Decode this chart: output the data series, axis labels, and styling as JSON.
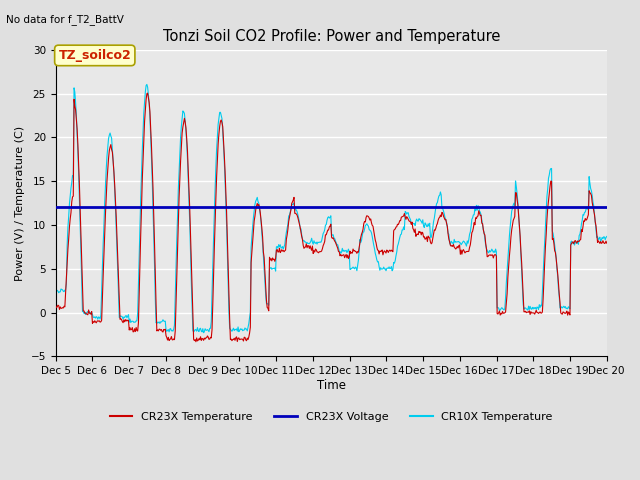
{
  "title": "Tonzi Soil CO2 Profile: Power and Temperature",
  "top_left_note": "No data for f_T2_BattV",
  "ylabel": "Power (V) / Temperature (C)",
  "xlabel": "Time",
  "ylim": [
    -5,
    30
  ],
  "yticks": [
    -5,
    0,
    5,
    10,
    15,
    20,
    25,
    30
  ],
  "n_days": 15,
  "voltage_value": 12.0,
  "bg_color": "#e0e0e0",
  "plot_bg_color": "#e8e8e8",
  "grid_color": "#ffffff",
  "legend_label_box": "TZ_soilco2",
  "legend_box_color": "#ffffcc",
  "legend_box_edge": "#aaa000",
  "cr23x_color": "#cc0000",
  "voltage_color": "#0000bb",
  "cr10x_color": "#00ccee",
  "cr23x_label": "CR23X Temperature",
  "voltage_label": "CR23X Voltage",
  "cr10x_label": "CR10X Temperature",
  "figsize": [
    6.4,
    4.8
  ],
  "dpi": 100
}
